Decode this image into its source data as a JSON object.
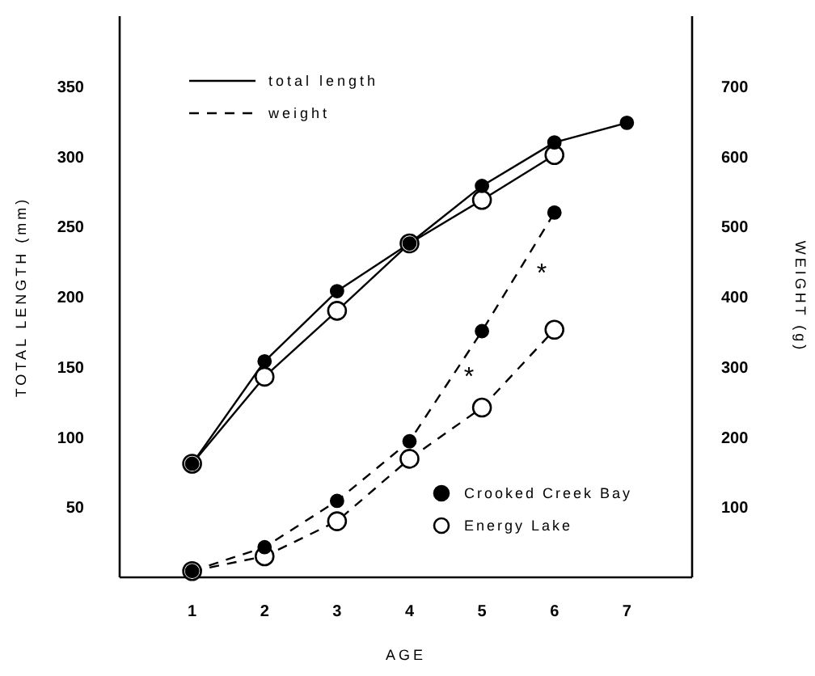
{
  "chart_data": {
    "type": "line",
    "xlabel": "AGE",
    "ylabel": "TOTAL LENGTH (mm)",
    "y2label": "WEIGHT (g)",
    "x": [
      1,
      2,
      3,
      4,
      5,
      6,
      7
    ],
    "xlim": [
      0,
      7.9
    ],
    "xticks": [
      1,
      2,
      3,
      4,
      5,
      6,
      7
    ],
    "ylim": [
      0,
      400
    ],
    "yticks": [
      50,
      100,
      150,
      200,
      250,
      300,
      350
    ],
    "y2lim": [
      0,
      800
    ],
    "y2ticks": [
      100,
      200,
      300,
      400,
      500,
      600,
      700
    ],
    "marker": "circle",
    "legend": "bottom right",
    "grid": false,
    "series": [
      {
        "name": "Crooked Creek Bay",
        "color": "#000000",
        "line_style": "solid",
        "values": [
          81,
          154,
          204,
          238,
          279,
          310,
          324
        ]
      },
      {
        "name": "Energy Lake",
        "color": "#000000",
        "colors": [
          "#ffffff",
          "#ffffff",
          "#ffffff",
          "#ffffff",
          "#ffffff",
          "#ffffff"
        ],
        "line_style": "solid",
        "x": [
          1,
          2,
          3,
          4,
          5,
          6
        ],
        "values": [
          81,
          143,
          190,
          238,
          269,
          301
        ]
      },
      {
        "color": "#000000",
        "line_style": "dashed",
        "axis": "y2",
        "x": [
          1,
          2,
          3,
          4,
          5,
          6
        ],
        "values": [
          9,
          43,
          109,
          194,
          351,
          520
        ]
      },
      {
        "color": "#000000",
        "colors": [
          "#ffffff",
          "#ffffff",
          "#ffffff",
          "#ffffff",
          "#ffffff",
          "#ffffff"
        ],
        "line_style": "dashed",
        "axis": "y2",
        "x": [
          1,
          2,
          3,
          4,
          5,
          6
        ],
        "values": [
          9,
          30,
          80,
          169,
          242,
          353
        ]
      }
    ],
    "annotations": [
      "total length",
      "weight",
      "*",
      "*"
    ]
  }
}
